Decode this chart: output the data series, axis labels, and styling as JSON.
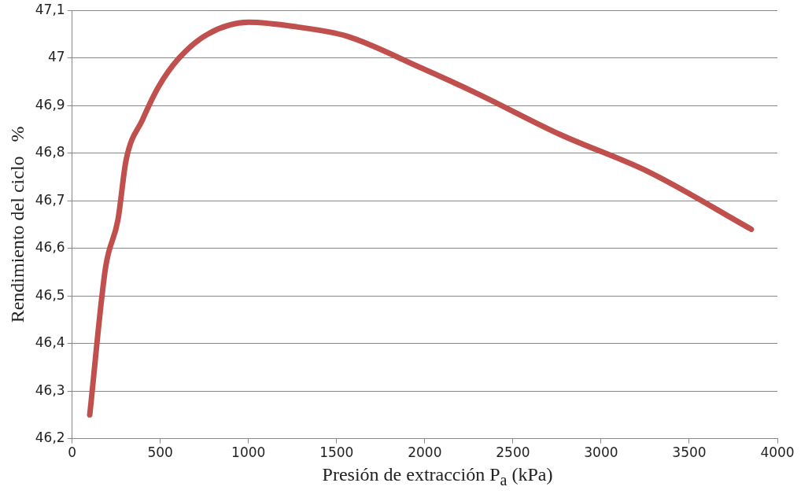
{
  "chart_data": {
    "type": "line",
    "xlabel": "Presión de extracción P$_{a}$ (kPa)",
    "ylabel": "Rendimiento del ciclo   %",
    "x": [
      100,
      190,
      260,
      306,
      399,
      491,
      607,
      769,
      1001,
      1279,
      1557,
      1974,
      2299,
      2763,
      3273,
      3852
    ],
    "series": [
      {
        "color": "#c0504d",
        "values": [
          46.25,
          46.56,
          46.66,
          46.785,
          46.87,
          46.94,
          47.0,
          47.05,
          47.075,
          47.065,
          47.046,
          46.98,
          46.925,
          46.84,
          46.76,
          46.64
        ]
      }
    ],
    "xlim": [
      0,
      4000
    ],
    "xticks": [
      0,
      500,
      1000,
      1500,
      2000,
      2500,
      3000,
      3500,
      4000
    ],
    "ylim": [
      46.2,
      47.1
    ],
    "yticks": [
      {
        "value": 46.2,
        "label": "46,2"
      },
      {
        "value": 46.3,
        "label": "46,3"
      },
      {
        "value": 46.4,
        "label": "46,4"
      },
      {
        "value": 46.5,
        "label": "46,5"
      },
      {
        "value": 46.6,
        "label": "46,6"
      },
      {
        "value": 46.7,
        "label": "46,7"
      },
      {
        "value": 46.8,
        "label": "46,8"
      },
      {
        "value": 46.9,
        "label": "46,9"
      },
      {
        "value": 47,
        "label": "47"
      },
      {
        "value": 47.1,
        "label": "47,1"
      }
    ],
    "grid": "y",
    "legend": false,
    "marker": "none",
    "line_style": "solid"
  }
}
